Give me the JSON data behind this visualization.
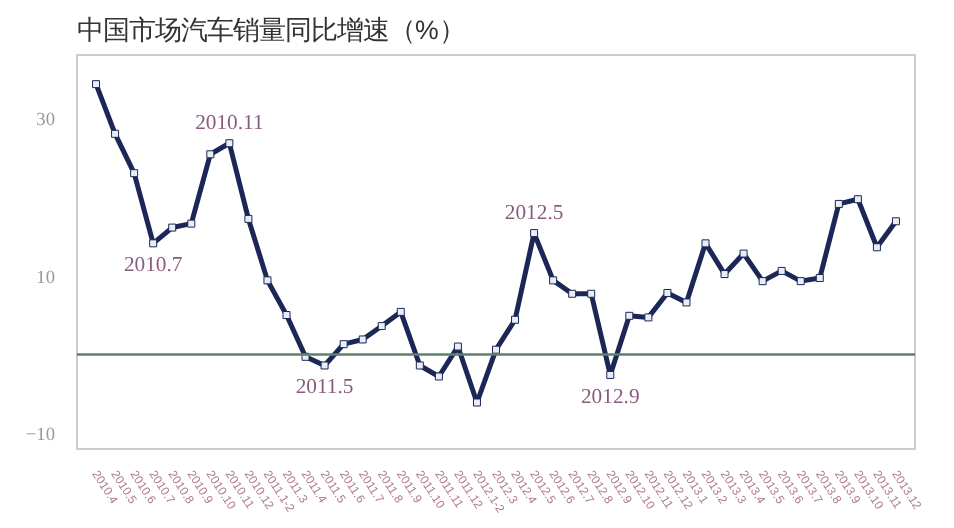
{
  "chart_data": {
    "type": "line",
    "title": "中国市场汽车销量同比增速（%）",
    "categories": [
      "2010.4",
      "2010.5",
      "2010.6",
      "2010.7",
      "2010.8",
      "2010.9",
      "2010.10",
      "2010.11",
      "2010.12",
      "2011.1-2",
      "2011.3",
      "2011.4",
      "2011.5",
      "2011.6",
      "2011.7",
      "2011.8",
      "2011.9",
      "2011.10",
      "2011.11",
      "2011.12",
      "2012.1-2",
      "2012.3",
      "2012.4",
      "2012.5",
      "2012.6",
      "2012.7",
      "2012.8",
      "2012.9",
      "2012.10",
      "2012.11",
      "2012.12",
      "2013.1",
      "2013.2",
      "2013.3",
      "2013.4",
      "2013.5",
      "2013.6",
      "2013.7",
      "2013.8",
      "2013.9",
      "2013.10",
      "2013.11",
      "2013.12"
    ],
    "series": [
      {
        "color": "#1c2757",
        "values": [
          34.3,
          28,
          23,
          14.1,
          16.1,
          16.6,
          25.4,
          26.8,
          17.2,
          9.4,
          5,
          -0.3,
          -1.4,
          1.3,
          1.9,
          3.6,
          5.4,
          -1.4,
          -2.8,
          1,
          -6.1,
          0.6,
          4.4,
          15.4,
          9.4,
          7.7,
          7.7,
          -2.6,
          4.9,
          4.7,
          7.8,
          6.6,
          14.1,
          10.2,
          12.8,
          9.3,
          10.6,
          9.3,
          9.7,
          19.1,
          19.7,
          13.6,
          16.9
        ]
      }
    ],
    "ylim": [
      -12,
      38
    ],
    "yticks": [
      30,
      10,
      -10
    ],
    "grid": false,
    "marker": "square",
    "line_style": "solid",
    "ref_lines": [
      {
        "axis": "y",
        "value": 0,
        "color": "#5f7f6f"
      }
    ],
    "annotations": [
      {
        "text": "2010.7",
        "x": "2010.7",
        "y": 14.1
      },
      {
        "text": "2010.11",
        "x": "2010.11",
        "y": 26.8
      },
      {
        "text": "2011.5",
        "x": "2011.5",
        "y": -1.4
      },
      {
        "text": "2012.5",
        "x": "2012.5",
        "y": 15.4
      },
      {
        "text": "2012.9",
        "x": "2012.9",
        "y": -2.6
      }
    ]
  }
}
